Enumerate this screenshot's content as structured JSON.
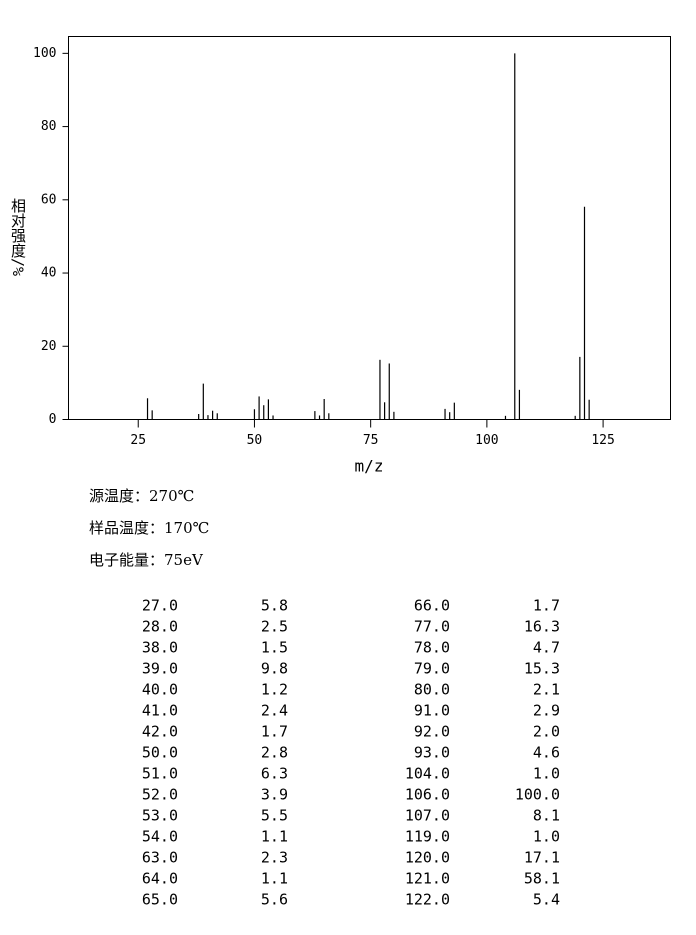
{
  "chart_data": {
    "type": "bar",
    "x_label": "m/z",
    "y_label": "相对强度/%",
    "x": [
      27,
      28,
      38,
      39,
      40,
      41,
      42,
      50,
      51,
      52,
      53,
      54,
      63,
      64,
      65,
      66,
      77,
      78,
      79,
      80,
      91,
      92,
      93,
      104,
      106,
      107,
      119,
      120,
      121,
      122
    ],
    "values": [
      5.8,
      2.5,
      1.5,
      9.8,
      1.2,
      2.4,
      1.7,
      2.8,
      6.3,
      3.9,
      5.5,
      1.1,
      2.3,
      1.1,
      5.6,
      1.7,
      16.3,
      4.7,
      15.3,
      2.1,
      2.9,
      2.0,
      4.6,
      1.0,
      100.0,
      8.1,
      1.0,
      17.1,
      58.1,
      5.4
    ],
    "color": "#000000",
    "xlim": [
      10,
      139.5
    ],
    "xticks": [
      25,
      50,
      75,
      100,
      125
    ],
    "ylim": [
      0,
      104.6
    ],
    "yticks": [
      0,
      20,
      40,
      60,
      80,
      100
    ]
  },
  "info": [
    "源温度：270℃",
    "样品温度：170℃",
    "电子能量：75eV"
  ],
  "table": {
    "rows": [
      [
        "27.0",
        "5.8",
        "66.0",
        "1.7"
      ],
      [
        "28.0",
        "2.5",
        "77.0",
        "16.3"
      ],
      [
        "38.0",
        "1.5",
        "78.0",
        "4.7"
      ],
      [
        "39.0",
        "9.8",
        "79.0",
        "15.3"
      ],
      [
        "40.0",
        "1.2",
        "80.0",
        "2.1"
      ],
      [
        "41.0",
        "2.4",
        "91.0",
        "2.9"
      ],
      [
        "42.0",
        "1.7",
        "92.0",
        "2.0"
      ],
      [
        "50.0",
        "2.8",
        "93.0",
        "4.6"
      ],
      [
        "51.0",
        "6.3",
        "104.0",
        "1.0"
      ],
      [
        "52.0",
        "3.9",
        "106.0",
        "100.0"
      ],
      [
        "53.0",
        "5.5",
        "107.0",
        "8.1"
      ],
      [
        "54.0",
        "1.1",
        "119.0",
        "1.0"
      ],
      [
        "63.0",
        "2.3",
        "120.0",
        "17.1"
      ],
      [
        "64.0",
        "1.1",
        "121.0",
        "58.1"
      ],
      [
        "65.0",
        "5.6",
        "122.0",
        "5.4"
      ]
    ]
  }
}
